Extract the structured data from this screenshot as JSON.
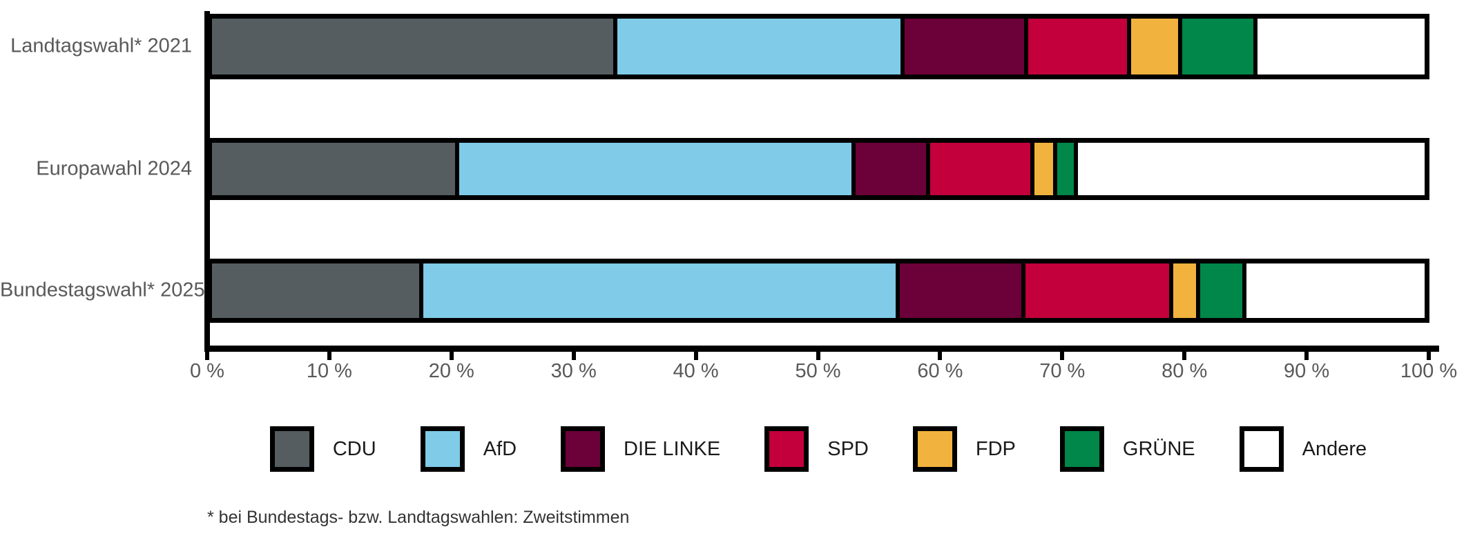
{
  "chart_data": {
    "type": "bar",
    "orientation": "horizontal",
    "stacked": true,
    "unit": "%",
    "title": "",
    "xlabel": "",
    "ylabel": "",
    "xlim": [
      0,
      100
    ],
    "grid": false,
    "legend_position": "bottom",
    "categories": [
      "Landtagswahl* 2021",
      "Europawahl 2024",
      "Bundestagswahl* 2025"
    ],
    "x_ticks": [
      "0 %",
      "10 %",
      "20 %",
      "30 %",
      "40 %",
      "50 %",
      "60 %",
      "70 %",
      "80 %",
      "90 %",
      "100 %"
    ],
    "x_tick_values": [
      0,
      10,
      20,
      30,
      40,
      50,
      60,
      70,
      80,
      90,
      100
    ],
    "series": [
      {
        "name": "CDU",
        "color": "#555D61",
        "values": [
          33.4,
          20.4,
          17.4
        ]
      },
      {
        "name": "AfD",
        "color": "#7FCBE8",
        "values": [
          23.7,
          32.7,
          39.3
        ]
      },
      {
        "name": "DIE LINKE",
        "color": "#6C0038",
        "values": [
          10.2,
          6.1,
          10.4
        ]
      },
      {
        "name": "SPD",
        "color": "#C3003C",
        "values": [
          8.5,
          8.6,
          12.2
        ]
      },
      {
        "name": "FDP",
        "color": "#F1B23E",
        "values": [
          4.2,
          1.9,
          2.2
        ]
      },
      {
        "name": "GRÜNE",
        "color": "#008749",
        "values": [
          6.2,
          1.7,
          3.8
        ]
      },
      {
        "name": "Andere",
        "color": "#FFFFFF",
        "values": [
          13.8,
          28.6,
          14.7
        ]
      }
    ]
  },
  "footnote": "* bei Bundestags- bzw. Landtagswahlen: Zweitstimmen",
  "colors": {
    "background": "#FFFFFF",
    "axis": "#000000",
    "segment_border": "#000000",
    "tick_label": "#595959",
    "category_label": "#595959",
    "legend_label": "#1A1A1A",
    "footnote": "#333333"
  }
}
